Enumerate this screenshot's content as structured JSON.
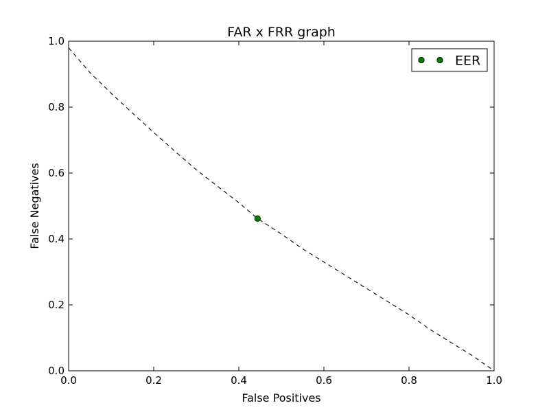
{
  "chart_data": {
    "type": "line",
    "title": "FAR x FRR graph",
    "xlabel": "False Positives",
    "ylabel": "False Negatives",
    "xlim": [
      0,
      1
    ],
    "ylim": [
      0,
      1
    ],
    "xticks": [
      "0.0",
      "0.2",
      "0.4",
      "0.6",
      "0.8",
      "1.0"
    ],
    "yticks": [
      "0.0",
      "0.2",
      "0.4",
      "0.6",
      "0.8",
      "1.0"
    ],
    "grid": false,
    "legend_position": "top-right",
    "series": [
      {
        "style": "dashed",
        "color": "#000000",
        "x": [
          0.0,
          0.05,
          0.1,
          0.15,
          0.2,
          0.25,
          0.3,
          0.35,
          0.4,
          0.444,
          0.5,
          0.55,
          0.6,
          0.65,
          0.7,
          0.75,
          0.8,
          0.85,
          0.9,
          0.95,
          1.0
        ],
        "y": [
          0.98,
          0.905,
          0.842,
          0.782,
          0.723,
          0.666,
          0.61,
          0.56,
          0.51,
          0.462,
          0.415,
          0.37,
          0.33,
          0.29,
          0.25,
          0.21,
          0.17,
          0.125,
          0.085,
          0.045,
          0.0
        ]
      },
      {
        "name": "EER",
        "style": "marker",
        "color": "#007f00",
        "x": [
          0.444
        ],
        "y": [
          0.462
        ]
      }
    ]
  }
}
